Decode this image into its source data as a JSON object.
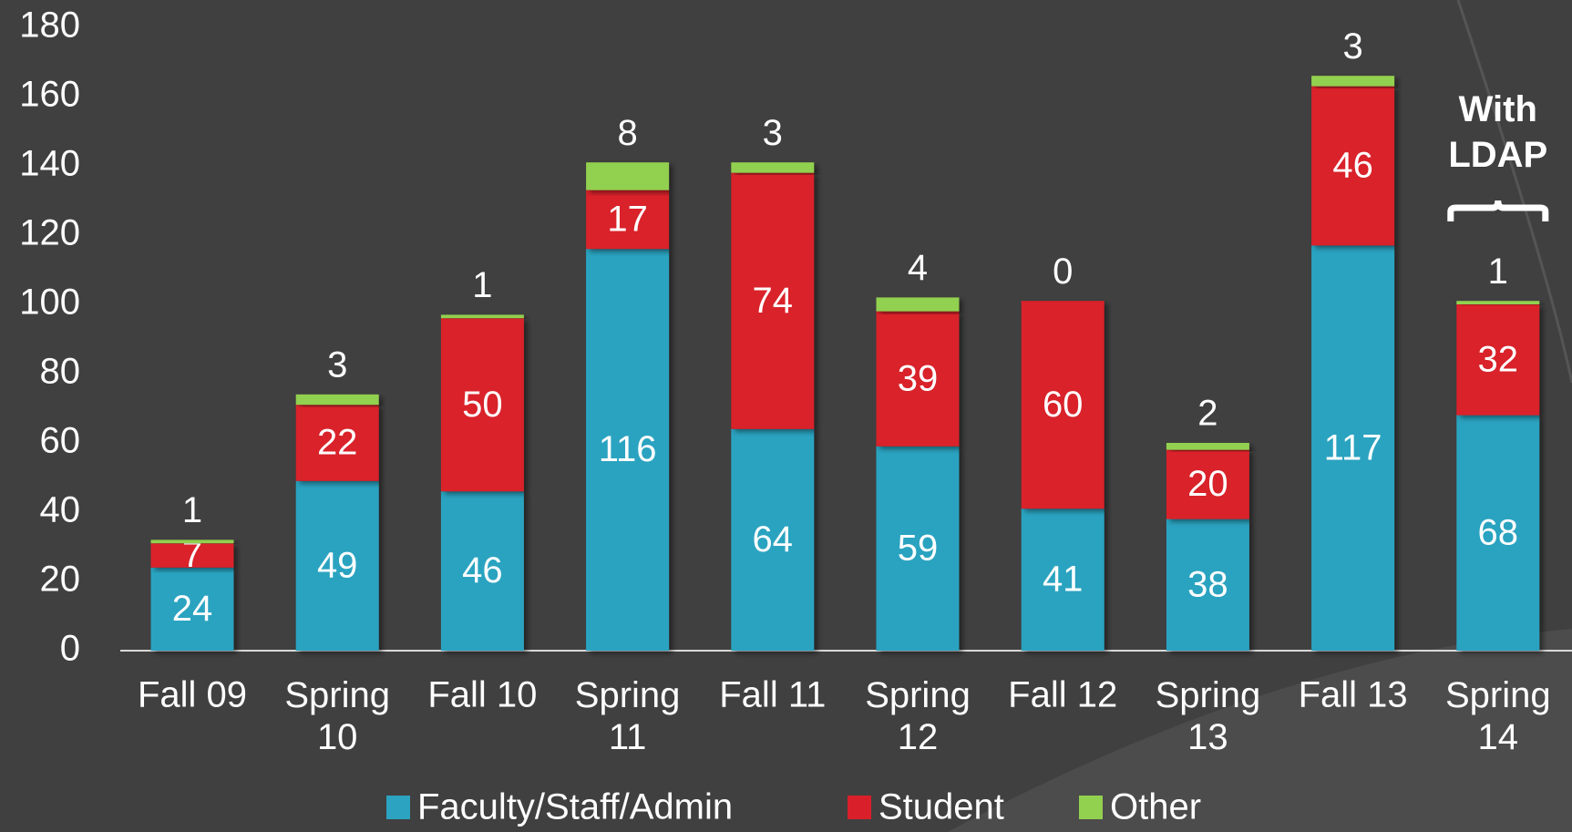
{
  "chart_data": {
    "type": "bar",
    "stacked": true,
    "categories": [
      "Fall 09",
      "Spring 10",
      "Fall 10",
      "Spring 11",
      "Fall 11",
      "Spring 12",
      "Fall 12",
      "Spring 13",
      "Fall 13",
      "Spring 14"
    ],
    "series": [
      {
        "name": "Faculty/Staff/Admin",
        "color": "#2ca3c0",
        "values": [
          24,
          49,
          46,
          116,
          64,
          59,
          41,
          38,
          117,
          68
        ]
      },
      {
        "name": "Student",
        "color": "#d9202a",
        "values": [
          7,
          22,
          50,
          17,
          74,
          39,
          60,
          20,
          46,
          32
        ]
      },
      {
        "name": "Other",
        "color": "#92d050",
        "values": [
          1,
          3,
          1,
          8,
          3,
          4,
          0,
          2,
          3,
          1
        ]
      }
    ],
    "ylim": [
      0,
      180
    ],
    "yticks": [
      0,
      20,
      40,
      60,
      80,
      100,
      120,
      140,
      160,
      180
    ],
    "legend": "bottom",
    "annotation": "With LDAP"
  }
}
